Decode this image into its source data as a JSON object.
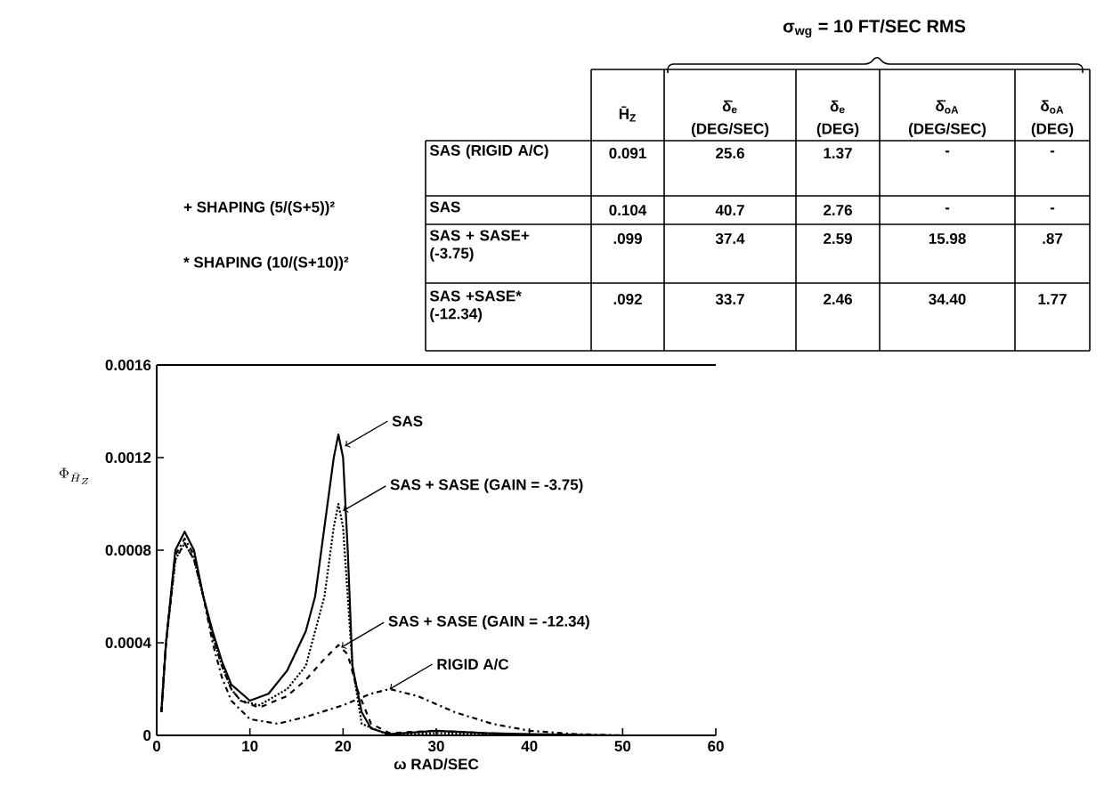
{
  "chart_data": {
    "type": "line",
    "xlabel": "ω RAD/SEC",
    "ylabel": "\\Phi_{\\bar{H}_{Z}}",
    "xlim": [
      0,
      60
    ],
    "xticks": [
      0,
      10,
      20,
      30,
      40,
      50,
      60
    ],
    "ylim": [
      0,
      0.0016
    ],
    "yticks": [
      0,
      0.0004,
      0.0008,
      0.0012,
      0.0016
    ],
    "marker": "none",
    "series": [
      {
        "color": "#000000",
        "line_style": "solid",
        "x": [
          0.5,
          1,
          2,
          3,
          4,
          5,
          6,
          7,
          8,
          10,
          12,
          14,
          16,
          17,
          18,
          19,
          19.5,
          20,
          20.5,
          21,
          22,
          23,
          25,
          30,
          35,
          40,
          50
        ],
        "values": [
          0.0001,
          0.0004,
          0.0008,
          0.00088,
          0.0008,
          0.0006,
          0.00045,
          0.00032,
          0.00022,
          0.00015,
          0.00018,
          0.00028,
          0.00045,
          0.0006,
          0.0009,
          0.0012,
          0.0013,
          0.0012,
          0.0008,
          0.0003,
          0.0001,
          3e-05,
          5e-06,
          2e-05,
          1e-05,
          5e-06,
          0
        ]
      },
      {
        "color": "#000000",
        "line_style": "dotted",
        "x": [
          0.5,
          1,
          2,
          3,
          4,
          5,
          6,
          7,
          8,
          9,
          11,
          14,
          16,
          18,
          19,
          19.5,
          20,
          21,
          22,
          25,
          30,
          40
        ],
        "values": [
          0.0001,
          0.0004,
          0.00076,
          0.00083,
          0.00076,
          0.0006,
          0.00043,
          0.0003,
          0.0002,
          0.00015,
          0.00013,
          0.0002,
          0.0003,
          0.0006,
          0.0009,
          0.001,
          0.0009,
          0.0003,
          5e-05,
          0,
          1e-05,
          0
        ]
      },
      {
        "color": "#000000",
        "line_style": "dashed",
        "x": [
          0.5,
          1,
          2,
          3,
          4,
          5,
          6,
          7,
          8,
          9,
          11,
          14,
          16,
          18,
          19.5,
          20.5,
          21.5,
          23,
          25,
          30,
          40
        ],
        "values": [
          0.0001,
          0.0004,
          0.00076,
          0.00083,
          0.00076,
          0.0006,
          0.00043,
          0.0003,
          0.0002,
          0.00015,
          0.00012,
          0.00017,
          0.00024,
          0.00033,
          0.00039,
          0.00035,
          0.0002,
          5e-05,
          1e-05,
          2e-05,
          0
        ]
      },
      {
        "color": "#000000",
        "line_style": "dashdot",
        "x": [
          0.5,
          1,
          2,
          3,
          4,
          5,
          6,
          7,
          8,
          10,
          13,
          16,
          20,
          23,
          25,
          28,
          32,
          36,
          40,
          45,
          50
        ],
        "values": [
          0.0001,
          0.0004,
          0.00078,
          0.00085,
          0.00078,
          0.0006,
          0.0004,
          0.00025,
          0.00015,
          7e-05,
          5e-05,
          8e-05,
          0.00013,
          0.00018,
          0.0002,
          0.00017,
          0.0001,
          5e-05,
          2e-05,
          5e-06,
          0
        ]
      }
    ],
    "annotations": [
      "σ$_{wg}$ = 10 FT/SEC RMS",
      "+ SHAPING (5/(S+5))²",
      "* SHAPING (10/(S+10))²",
      "H̄$_{Z}$",
      "δ̇$_{e}$",
      "δ$_{e}$",
      "δ̇$_{oA}$",
      "δ$_{oA}$",
      "(DEG/SEC)",
      "(DEG)",
      "(DEG/SEC)",
      "(DEG)",
      "SAS (RIGID A/C)",
      "0.091",
      "25.6",
      "1.37",
      "-",
      "-",
      "SAS",
      "0.104",
      "40.7",
      "2.76",
      "-",
      "-",
      "SAS + SASE+ (-3.75)",
      ".099",
      "37.4",
      "2.59",
      "15.98",
      ".87",
      "SAS +SASE* (-12.34)",
      ".092",
      "33.7",
      "2.46",
      "34.40",
      "1.77",
      {
        "text": "SAS",
        "x": 20.2,
        "y": 0.00125
      },
      {
        "text": "SAS + SASE (GAIN = -3.75)",
        "x": 20,
        "y": 0.00097
      },
      {
        "text": "SAS + SASE (GAIN = -12.34)",
        "x": 19.8,
        "y": 0.00038
      },
      {
        "text": "RIGID A/C",
        "x": 25,
        "y": 0.0002
      }
    ]
  }
}
